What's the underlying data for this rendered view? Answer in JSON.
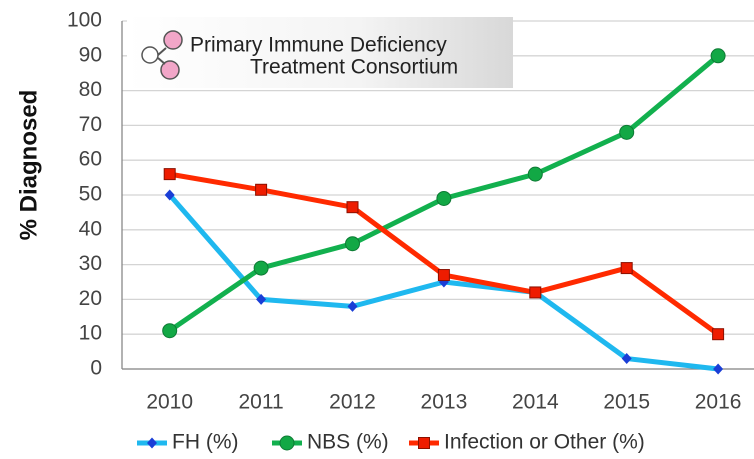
{
  "chart_data": {
    "type": "line",
    "y_label": "% Diagnosed",
    "annotations": [
      "Primary Immune Deficiency",
      "Treatment Consortium"
    ],
    "categories": [
      "2010",
      "2011",
      "2012",
      "2013",
      "2014",
      "2015",
      "2016"
    ],
    "series": [
      {
        "name": "FH (%)",
        "color": "#1fb8ef",
        "marker": "diamond",
        "marker_color": "#1a3ed6",
        "values": [
          50,
          20,
          18,
          25,
          22,
          3,
          0
        ]
      },
      {
        "name": "NBS (%)",
        "color": "#12b04e",
        "marker": "circle",
        "marker_color": "#12a845",
        "values": [
          11,
          29,
          36,
          49,
          56,
          68,
          90
        ]
      },
      {
        "name": "Infection or Other (%)",
        "color": "#ff2a00",
        "marker": "square",
        "marker_color": "#ee1c00",
        "values": [
          56,
          51.5,
          46.5,
          27,
          22,
          29,
          10
        ]
      }
    ],
    "ylim": [
      0,
      100
    ],
    "yticks": [
      0,
      10,
      20,
      30,
      40,
      50,
      60,
      70,
      80,
      90,
      100
    ],
    "grid": true
  }
}
